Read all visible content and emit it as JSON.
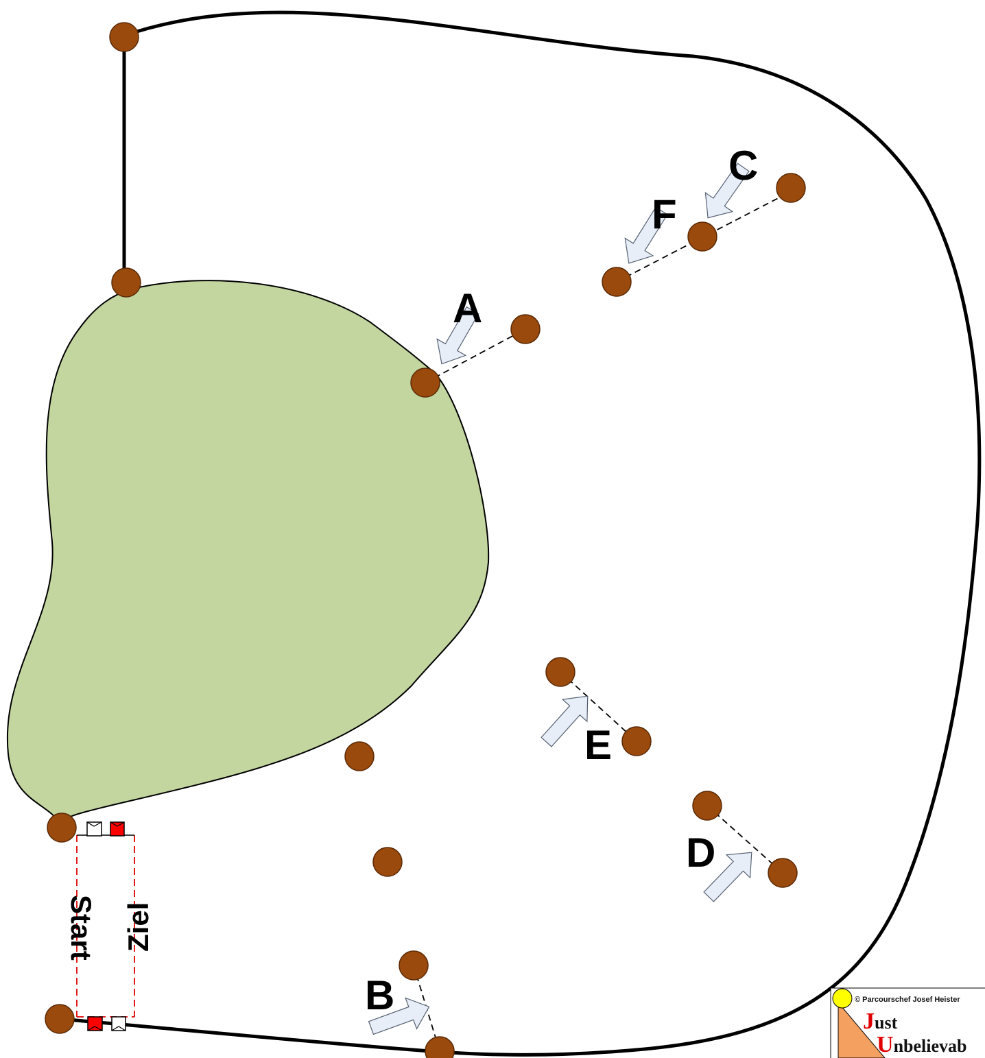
{
  "labels": {
    "a": "A",
    "b": "B",
    "c": "C",
    "d": "D",
    "e": "E",
    "f": "F",
    "start": "Start",
    "ziel": "Ziel"
  },
  "signature": {
    "credit": "© Parcourschef Josef Heister",
    "line1_cap": "J",
    "line1_rest": "ust",
    "line2_cap": "U",
    "line2_rest": "nbelievab"
  },
  "colors": {
    "post": "#9a4a0c",
    "field": "#c3d6a0",
    "flag_red": "#ff0000",
    "start_line": "#e00000",
    "arrow_fill": "#e8eef8"
  }
}
